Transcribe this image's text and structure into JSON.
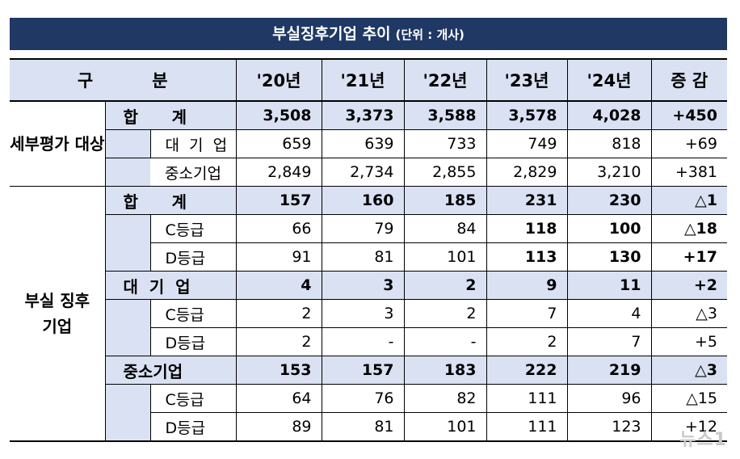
{
  "title": "부실징후기업 추이",
  "unit": "(단위 : 개사)",
  "header": {
    "category": "구          분",
    "years": [
      "'20년",
      "'21년",
      "'22년",
      "'23년",
      "'24년"
    ],
    "change": "증  감"
  },
  "sections": {
    "eval": {
      "label": "세부평가 대상",
      "rows": [
        {
          "label": "합      계",
          "values": [
            "3,508",
            "3,373",
            "3,588",
            "3,578",
            "4,028"
          ],
          "change": "+450"
        },
        {
          "label": "대  기  업",
          "values": [
            "659",
            "639",
            "733",
            "749",
            "818"
          ],
          "change": "+69"
        },
        {
          "label": "중소기업",
          "values": [
            "2,849",
            "2,734",
            "2,855",
            "2,829",
            "3,210"
          ],
          "change": "+381"
        }
      ]
    },
    "distressed": {
      "label": "부실 징후기업",
      "total": {
        "label": "합      계",
        "values": [
          "157",
          "160",
          "185",
          "231",
          "230"
        ],
        "change": "△1"
      },
      "total_c": {
        "label": "C등급",
        "values": [
          "66",
          "79",
          "84",
          "118",
          "100"
        ],
        "change": "△18"
      },
      "total_d": {
        "label": "D등급",
        "values": [
          "91",
          "81",
          "101",
          "113",
          "130"
        ],
        "change": "+17"
      },
      "large": {
        "label": "대  기  업",
        "values": [
          "4",
          "3",
          "2",
          "9",
          "11"
        ],
        "change": "+2"
      },
      "large_c": {
        "label": "C등급",
        "values": [
          "2",
          "3",
          "2",
          "7",
          "4"
        ],
        "change": "△3"
      },
      "large_d": {
        "label": "D등급",
        "values": [
          "2",
          "-",
          "-",
          "2",
          "7"
        ],
        "change": "+5"
      },
      "sme": {
        "label": "중소기업",
        "values": [
          "153",
          "157",
          "183",
          "222",
          "219"
        ],
        "change": "△3"
      },
      "sme_c": {
        "label": "C등급",
        "values": [
          "64",
          "76",
          "82",
          "111",
          "96"
        ],
        "change": "△15"
      },
      "sme_d": {
        "label": "D등급",
        "values": [
          "89",
          "81",
          "101",
          "111",
          "123"
        ],
        "change": "+12"
      }
    }
  },
  "watermark": "뉴스1"
}
